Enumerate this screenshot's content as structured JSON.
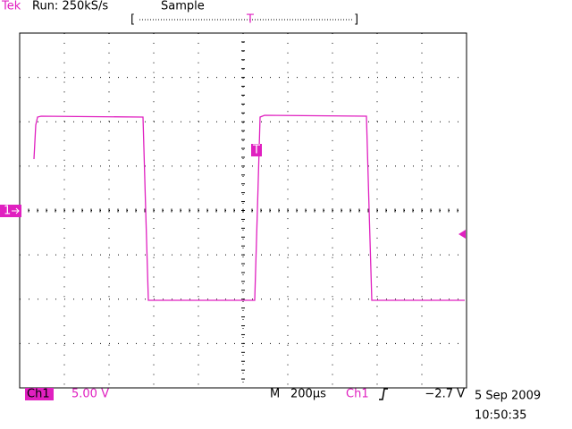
{
  "header": {
    "brand": "Tek",
    "status": "Run: 250kS/s",
    "mode": "Sample",
    "trigger_position": "T"
  },
  "markers": {
    "channel": "1",
    "trigger": "T"
  },
  "footer": {
    "channel": "Ch1",
    "scale": "5.00 V",
    "timebase_label": "M",
    "timebase": "200µs",
    "trigger_source": "Ch1",
    "trigger_level": "−2.7 V",
    "date": "5 Sep 2009",
    "time": "10:50:35"
  }
}
